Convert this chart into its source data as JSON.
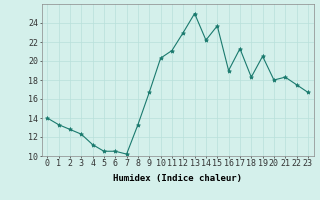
{
  "x": [
    0,
    1,
    2,
    3,
    4,
    5,
    6,
    7,
    8,
    9,
    10,
    11,
    12,
    13,
    14,
    15,
    16,
    17,
    18,
    19,
    20,
    21,
    22,
    23
  ],
  "y": [
    14.0,
    13.3,
    12.8,
    12.3,
    11.2,
    10.5,
    10.5,
    10.2,
    13.3,
    16.7,
    20.3,
    21.1,
    23.0,
    25.0,
    22.2,
    23.7,
    19.0,
    21.3,
    18.3,
    20.5,
    18.0,
    18.3,
    17.5,
    16.7
  ],
  "line_color": "#1a7a6e",
  "marker": "*",
  "marker_size": 3,
  "bg_color": "#d4f0eb",
  "grid_color": "#b8e0da",
  "xlabel": "Humidex (Indice chaleur)",
  "ylim": [
    10,
    26
  ],
  "xlim": [
    -0.5,
    23.5
  ],
  "yticks": [
    10,
    12,
    14,
    16,
    18,
    20,
    22,
    24
  ],
  "xtick_labels": [
    "0",
    "1",
    "2",
    "3",
    "4",
    "5",
    "6",
    "7",
    "8",
    "9",
    "10",
    "11",
    "12",
    "13",
    "14",
    "15",
    "16",
    "17",
    "18",
    "19",
    "20",
    "21",
    "22",
    "23"
  ],
  "xlabel_fontsize": 6.5,
  "tick_fontsize": 6.0
}
